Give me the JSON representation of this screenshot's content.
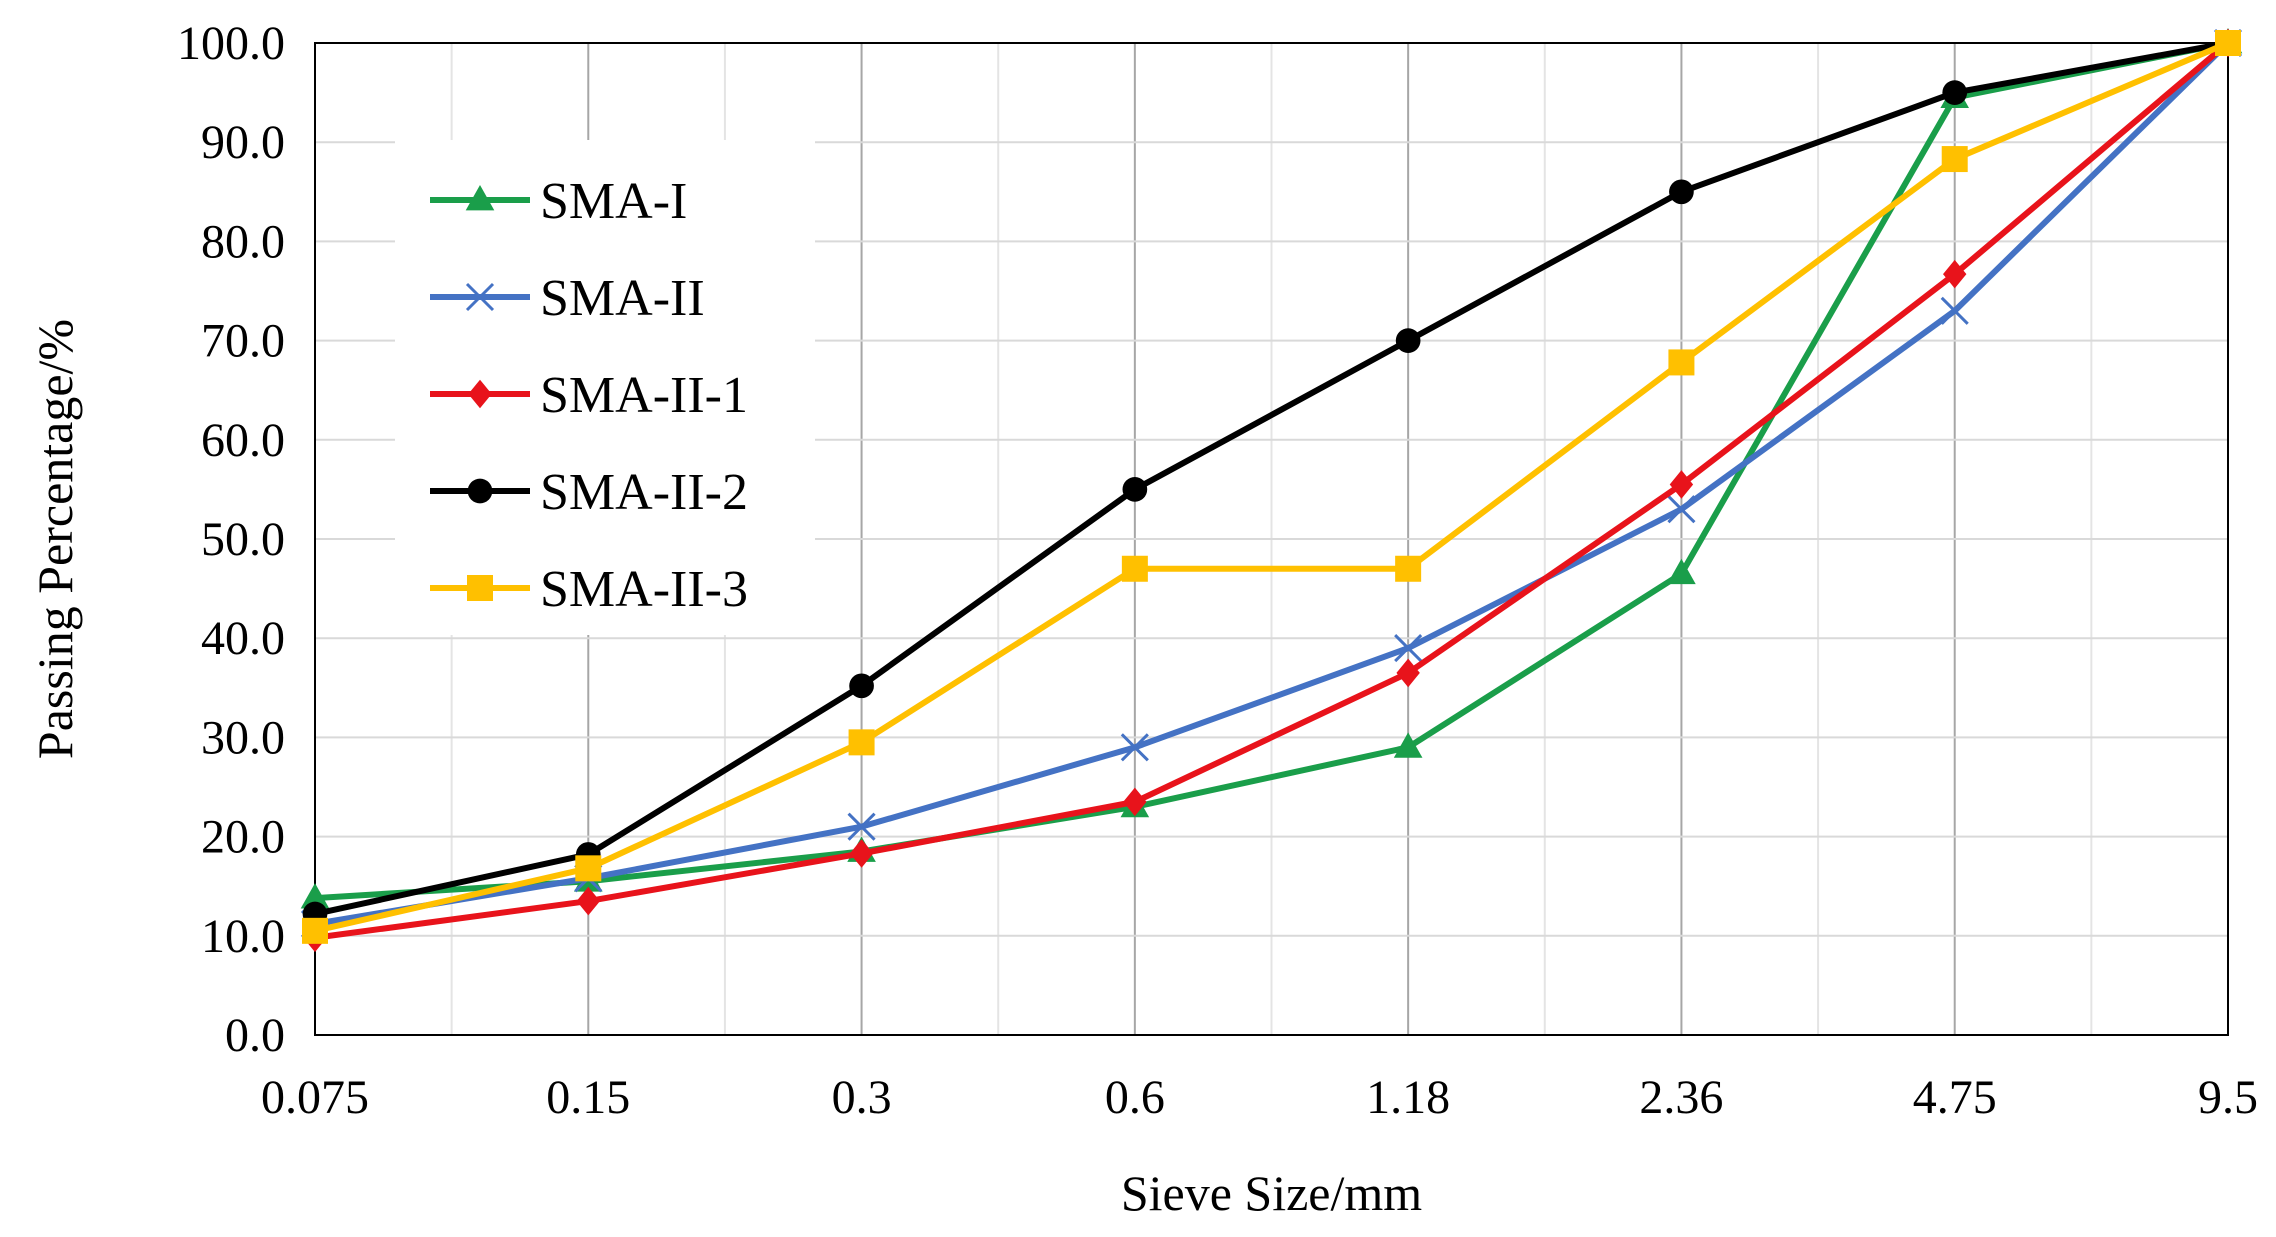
{
  "chart_data": {
    "type": "line",
    "title": "",
    "xlabel": "Sieve Size/mm",
    "ylabel": "Passing Percentage/%",
    "categories": [
      "0.075",
      "0.15",
      "0.3",
      "0.6",
      "1.18",
      "2.36",
      "4.75",
      "9.5"
    ],
    "ylim": [
      0,
      100
    ],
    "yticks": [
      "0.0",
      "10.0",
      "20.0",
      "30.0",
      "40.0",
      "50.0",
      "60.0",
      "70.0",
      "80.0",
      "90.0",
      "100.0"
    ],
    "grid": true,
    "legend_position": "upper-left",
    "series": [
      {
        "name": "SMA-I",
        "color": "#1a9e4a",
        "marker": "triangle",
        "values": [
          13.8,
          15.5,
          18.5,
          23.0,
          29.0,
          46.5,
          94.5,
          100.0
        ]
      },
      {
        "name": "SMA-II",
        "color": "#4472c4",
        "marker": "x",
        "values": [
          11.2,
          15.8,
          21.0,
          29.0,
          39.0,
          53.0,
          73.0,
          100.0
        ]
      },
      {
        "name": "SMA-II-1",
        "color": "#e8131b",
        "marker": "diamond",
        "values": [
          9.8,
          13.5,
          18.3,
          23.5,
          36.5,
          55.5,
          76.7,
          100.0
        ]
      },
      {
        "name": "SMA-II-2",
        "color": "#000000",
        "marker": "circle",
        "values": [
          12.2,
          18.2,
          35.2,
          55.0,
          70.0,
          85.0,
          95.0,
          100.0
        ]
      },
      {
        "name": "SMA-II-3",
        "color": "#ffc000",
        "marker": "square",
        "values": [
          10.5,
          16.8,
          29.5,
          47.0,
          47.0,
          67.8,
          88.3,
          100.0
        ]
      }
    ]
  }
}
